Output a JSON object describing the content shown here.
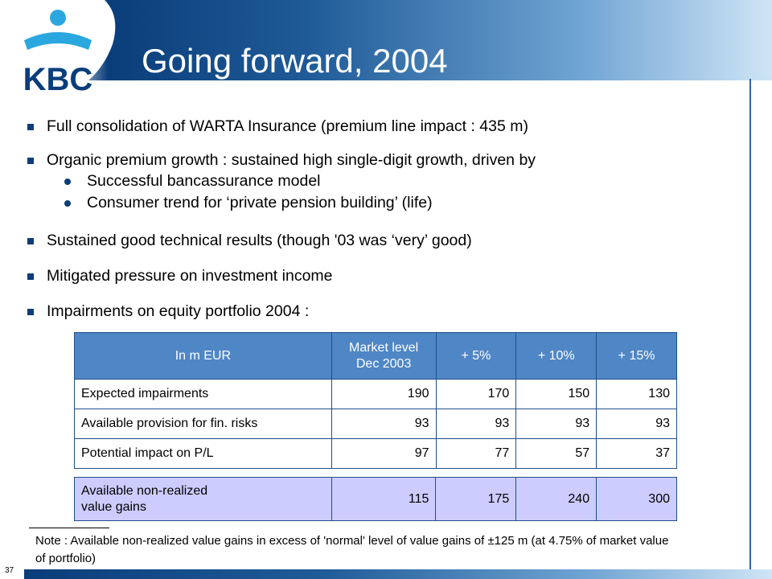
{
  "slide": {
    "title": "Going forward, 2004",
    "page_number": "37",
    "logo_text": "KBC"
  },
  "bullets": [
    {
      "text": "Full consolidation of WARTA Insurance (premium line impact : 435 m)"
    },
    {
      "text": "Organic premium growth : sustained high single-digit growth, driven by",
      "sub": [
        "Successful bancassurance model",
        "Consumer trend for ‘private pension building’ (life)"
      ]
    },
    {
      "text": "Sustained good technical results (though '03 was ‘very’ good)"
    },
    {
      "text": "Mitigated pressure on investment income"
    },
    {
      "text": "Impairments on equity portfolio 2004 :"
    }
  ],
  "table": {
    "headers": [
      "In m EUR",
      "Market level Dec  2003",
      "+ 5%",
      "+ 10%",
      "+ 15%"
    ],
    "rows": [
      {
        "label": "Expected impairments",
        "values": [
          "190",
          "170",
          "150",
          "130"
        ]
      },
      {
        "label": "Available provision for fin. risks",
        "values": [
          "93",
          "93",
          "93",
          "93"
        ]
      },
      {
        "label": "Potential impact on P/L",
        "values": [
          "97",
          "77",
          "57",
          "37"
        ]
      }
    ]
  },
  "available": {
    "label": "Available non-realized value gains",
    "values": [
      "115",
      "175",
      "240",
      "300"
    ]
  },
  "note": "Note : Available non-realized value gains in excess of 'normal' level of value gains of ±125 m (at 4.75% of market value of portfolio)",
  "colors": {
    "brand_dark_blue": "#0a3d7a",
    "header_blue": "#4f86c6",
    "highlight_lavender": "#ccccff"
  }
}
